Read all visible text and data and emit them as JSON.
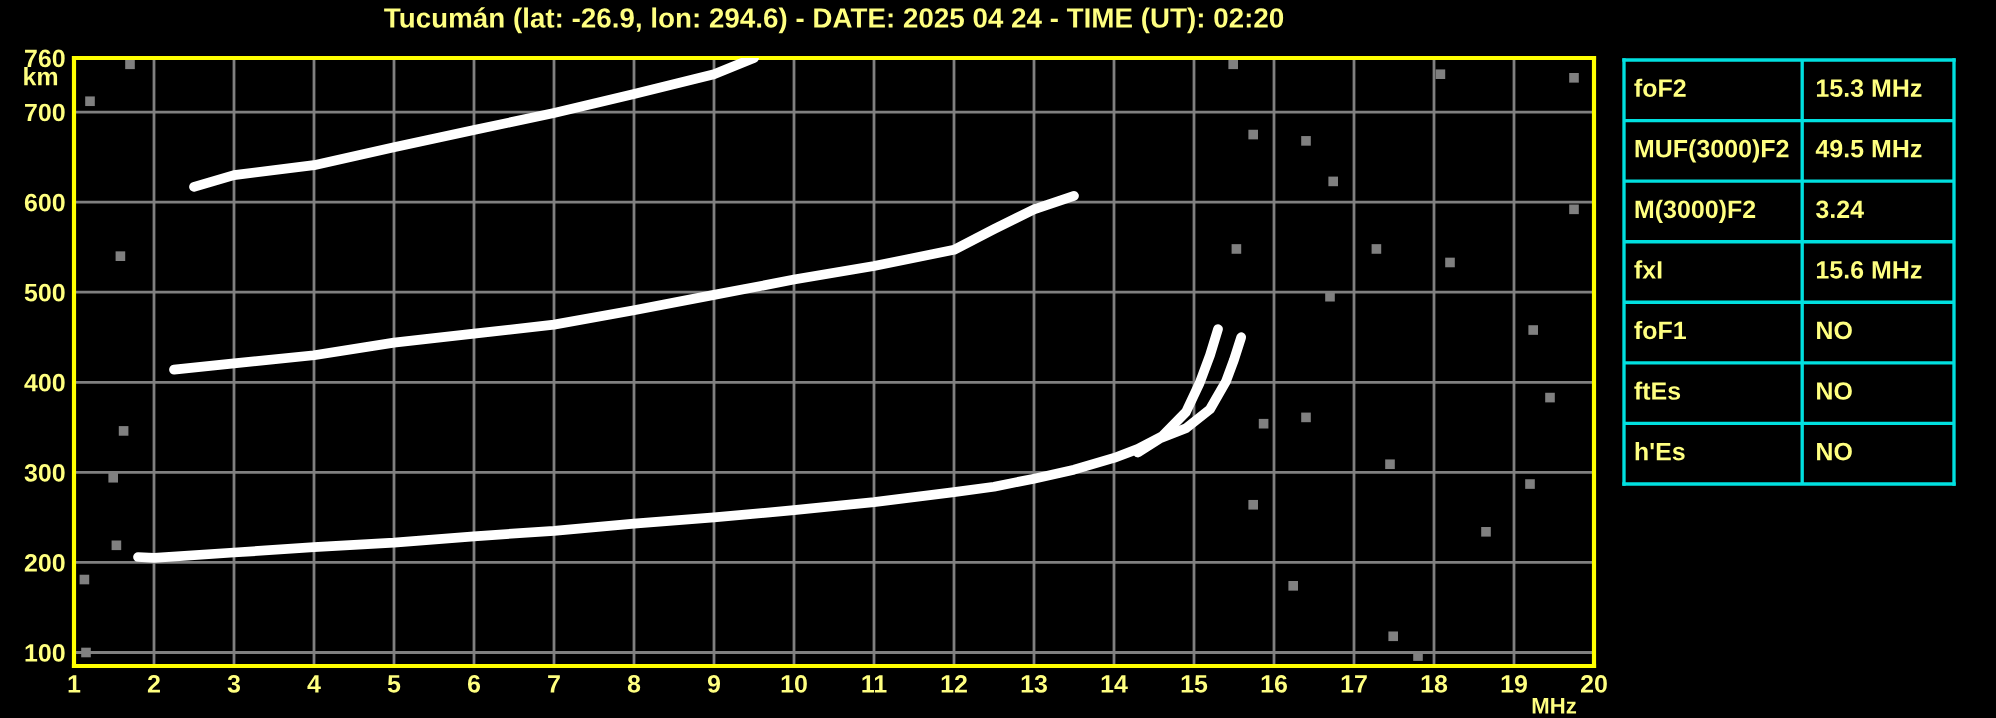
{
  "chart_data": [
    {
      "type": "line",
      "title": "Tucumán (lat: -26.9, lon: 294.6) - DATE: 2025 04 24 - TIME (UT): 02:20",
      "xlabel": "MHz",
      "ylabel": "km",
      "xlim": [
        1,
        20
      ],
      "xticks": [
        1,
        2,
        3,
        4,
        5,
        6,
        7,
        8,
        9,
        10,
        11,
        12,
        13,
        14,
        15,
        16,
        17,
        18,
        19,
        20
      ],
      "ylim": [
        85,
        760
      ],
      "yticks": [
        100,
        200,
        300,
        400,
        500,
        600,
        700,
        760
      ],
      "grid": true,
      "legend": false,
      "marker": "none",
      "line_style": "solid",
      "series": [
        {
          "color": "#ffffff",
          "x": [
            1.8,
            2,
            3,
            4,
            5,
            6,
            7,
            8,
            9,
            10,
            11,
            12,
            12.5,
            13,
            13.5,
            14,
            14.3,
            14.6,
            14.9,
            15.07,
            15.2,
            15.3
          ],
          "values": [
            206,
            205,
            211,
            217,
            222,
            229,
            235,
            243,
            250,
            258,
            267,
            278,
            284,
            293,
            303,
            316,
            326,
            340,
            367,
            399,
            430,
            459
          ]
        },
        {
          "color": "#ffffff",
          "x": [
            14.3,
            14.58,
            14.9,
            15.2,
            15.4,
            15.5,
            15.59
          ],
          "values": [
            322,
            338,
            349,
            370,
            401,
            425,
            450
          ]
        },
        {
          "color": "#ffffff",
          "x": [
            2.25,
            3,
            4,
            5,
            6,
            7,
            8,
            9,
            10,
            11,
            12,
            12.5,
            13,
            13.5
          ],
          "values": [
            414,
            421,
            430,
            444,
            454,
            464,
            480,
            497,
            514,
            529,
            547,
            570,
            592,
            607
          ]
        },
        {
          "color": "#ffffff",
          "x": [
            2.5,
            3,
            4,
            5,
            6,
            7,
            8,
            9,
            9.5
          ],
          "values": [
            617,
            630,
            641,
            661,
            680,
            699,
            720,
            742,
            760
          ]
        },
        {
          "type": "scatter",
          "marker": "square",
          "color": "#808080",
          "x": [
            15.49,
            15.74,
            16.4,
            16.74,
            15.53,
            17.28,
            18.2,
            16.7,
            19.24,
            19.45,
            17.45,
            19.2,
            15.74,
            18.65,
            16.24,
            17.49,
            17.8,
            18.08,
            19.75,
            19.75,
            15.87,
            16.4,
            1.15,
            1.13,
            1.53,
            1.49,
            1.62,
            1.2,
            1.7,
            1.58
          ],
          "values": [
            753,
            675,
            668,
            623,
            548,
            548,
            533,
            495,
            458,
            383,
            309,
            287,
            264,
            234,
            174,
            118,
            96,
            742,
            738,
            592,
            354,
            361,
            100,
            181,
            219,
            294,
            346,
            712,
            753,
            540
          ]
        }
      ]
    },
    {
      "type": "other",
      "cell_labels": [
        [
          "foF2",
          "15.3 MHz"
        ],
        [
          "MUF(3000)F2",
          "49.5 MHz"
        ],
        [
          "M(3000)F2",
          "3.24"
        ],
        [
          "fxI",
          "15.6 MHz"
        ],
        [
          "foF1",
          "NO"
        ],
        [
          "ftEs",
          "NO"
        ],
        [
          "h'Es",
          "NO"
        ]
      ]
    }
  ]
}
